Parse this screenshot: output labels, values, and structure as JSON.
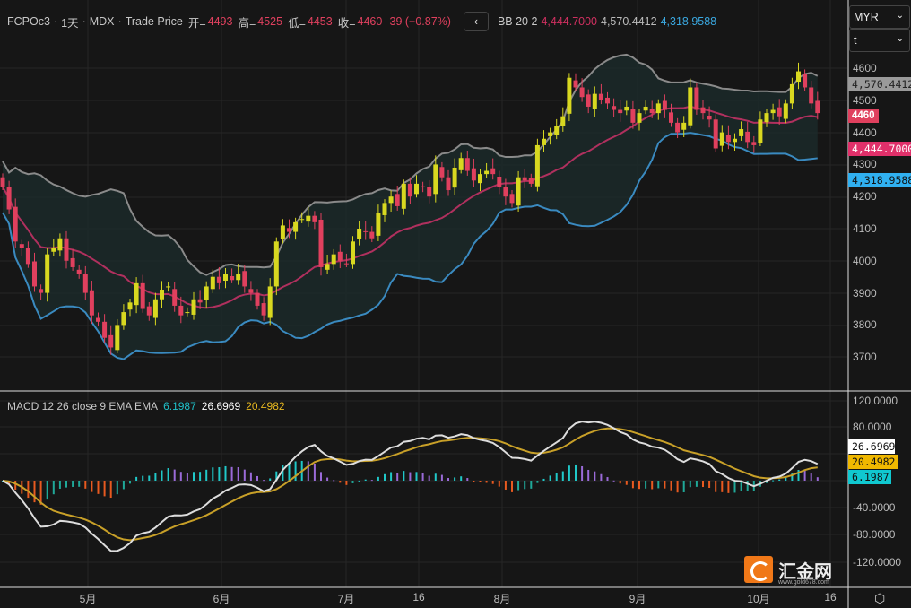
{
  "header": {
    "symbol": "FCPOc3",
    "sep": "·",
    "interval": "1天",
    "exchange": "MDX",
    "price_type": "Trade Price",
    "open_label": "开=",
    "open": "4493",
    "high_label": "高=",
    "high": "4525",
    "low_label": "低=",
    "low": "4453",
    "close_label": "收=",
    "close": "4460",
    "change": "-39 (−0.87%)"
  },
  "bb": {
    "label": "BB 20 2",
    "basis": "4,444.7000",
    "upper": "4,570.4412",
    "lower": "4,318.9588"
  },
  "currency_select": "MYR",
  "unit_select": "t",
  "price_axis": [
    "4600",
    "4500",
    "4400",
    "4300",
    "4200",
    "4100",
    "4000",
    "3900",
    "3800",
    "3700"
  ],
  "price_tags": {
    "upper": "4,570.4412",
    "last": "4460",
    "basis": "4,444.7000",
    "lower": "4,318.9588"
  },
  "macd": {
    "label": "MACD 12 26 close 9 EMA EMA",
    "hist": "6.1987",
    "macd": "26.6969",
    "signal": "20.4982"
  },
  "macd_axis": [
    "120.0000",
    "80.0000",
    "-40.0000",
    "-80.0000",
    "-120.0000"
  ],
  "time_axis": [
    "5月",
    "6月",
    "7月",
    "16",
    "8月",
    "9月",
    "10月",
    "16"
  ],
  "logo": {
    "name": "汇金网",
    "url": "www.gold678.com"
  },
  "colors": {
    "up": "#d8d820",
    "down": "#e0405e",
    "upper": "#8a8a8a",
    "basis": "#b0305e",
    "lower": "#3a8ac0",
    "macd": "#dddddd",
    "signal": "#c8a028"
  },
  "chart_data": {
    "type": "candlestick",
    "closes": [
      4230,
      4160,
      4060,
      4040,
      3990,
      3920,
      3900,
      4020,
      4040,
      4070,
      4000,
      3980,
      3960,
      3900,
      3830,
      3810,
      3760,
      3730,
      3800,
      3840,
      3870,
      3930,
      3850,
      3830,
      3880,
      3910,
      3920,
      3860,
      3830,
      3840,
      3880,
      3870,
      3920,
      3950,
      3930,
      3960,
      3940,
      3960,
      3920,
      3900,
      3860,
      3830,
      3920,
      4060,
      4110,
      4090,
      4120,
      4130,
      4140,
      4120,
      3980,
      3990,
      4020,
      4000,
      3990,
      4060,
      4100,
      4090,
      4070,
      4150,
      4180,
      4200,
      4170,
      4240,
      4200,
      4240,
      4230,
      4200,
      4300,
      4260,
      4220,
      4290,
      4320,
      4280,
      4250,
      4270,
      4280,
      4270,
      4230,
      4200,
      4180,
      4260,
      4250,
      4240,
      4360,
      4380,
      4400,
      4420,
      4450,
      4570,
      4540,
      4510,
      4480,
      4520,
      4500,
      4490,
      4470,
      4460,
      4480,
      4430,
      4460,
      4480,
      4460,
      4490,
      4470,
      4430,
      4400,
      4430,
      4540,
      4470,
      4460,
      4440,
      4350,
      4400,
      4370,
      4380,
      4410,
      4370,
      4360,
      4440,
      4460,
      4470,
      4450,
      4490,
      4550,
      4590,
      4540,
      4490,
      4460
    ],
    "ylim": [
      3620,
      4680
    ]
  }
}
